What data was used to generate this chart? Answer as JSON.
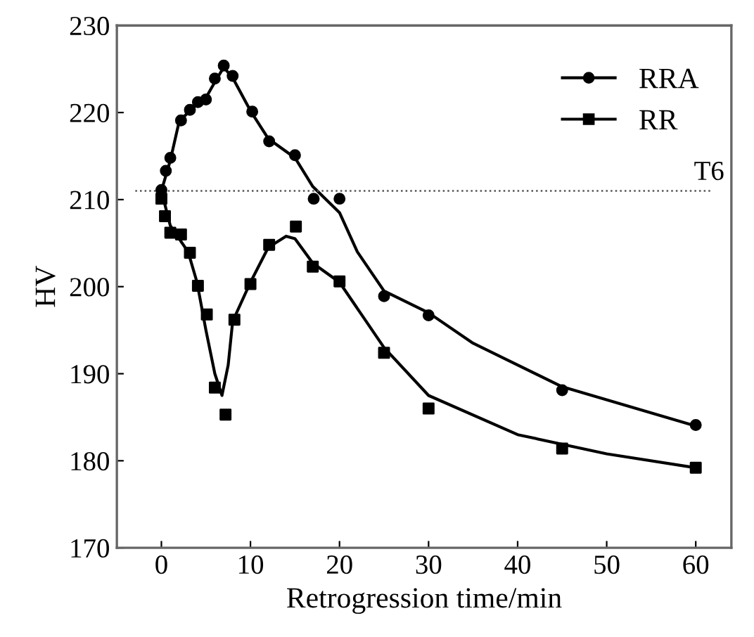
{
  "chart_data": {
    "type": "scatter",
    "xlabel": "Retrogression time/min",
    "ylabel": "HV",
    "xlim": [
      -5,
      64
    ],
    "ylim": [
      170,
      230
    ],
    "xticks": [
      0,
      10,
      20,
      30,
      40,
      50,
      60
    ],
    "yticks": [
      170,
      180,
      190,
      200,
      210,
      220,
      230
    ],
    "grid": false,
    "legend": "top right",
    "line_style": "solid",
    "ref_lines": [
      {
        "axis": "y",
        "value": 211,
        "label": "T6",
        "line_style": "dotted",
        "color": "#555555"
      }
    ],
    "series": [
      {
        "name": "RRA",
        "marker": "circle",
        "color": "#000000",
        "x": [
          0,
          0.5,
          1,
          2.2,
          3.2,
          4.1,
          5,
          6,
          7,
          8,
          10.2,
          12.1,
          15,
          17.1,
          20,
          25,
          30,
          45,
          60
        ],
        "values": [
          211.1,
          213.3,
          214.8,
          219.1,
          220.3,
          221.2,
          221.5,
          223.9,
          225.4,
          224.2,
          220.1,
          216.7,
          215.1,
          210.1,
          210.1,
          198.9,
          196.7,
          188.1,
          184.1
        ]
      },
      {
        "name": "RR",
        "marker": "square",
        "color": "#000000",
        "x": [
          0,
          0.4,
          1,
          2.2,
          3.2,
          4.1,
          5.1,
          6,
          7.2,
          8.2,
          10,
          12.1,
          15.1,
          17,
          20,
          25,
          30,
          45,
          60
        ],
        "values": [
          210.1,
          208.1,
          206.2,
          206.0,
          203.9,
          200.1,
          196.8,
          188.4,
          185.3,
          196.2,
          200.3,
          204.8,
          206.9,
          202.3,
          200.6,
          192.4,
          186.0,
          181.4,
          179.2
        ]
      },
      {
        "type": "line",
        "marker": "none",
        "color": "#000000",
        "x": [
          0,
          1,
          2,
          4,
          5,
          6,
          7,
          8,
          10,
          12,
          15,
          17,
          20,
          22,
          25,
          30,
          35,
          45,
          60
        ],
        "values": [
          211,
          214.5,
          219,
          221,
          221.7,
          223.5,
          225.2,
          224,
          220.2,
          217,
          214.8,
          211.5,
          208.5,
          204,
          199.5,
          197,
          193.5,
          188.5,
          184
        ]
      },
      {
        "type": "line",
        "marker": "none",
        "color": "#000000",
        "x": [
          0,
          1,
          2,
          3,
          4,
          5,
          6,
          6.8,
          7.5,
          8,
          10,
          12,
          14,
          15,
          17,
          20,
          25,
          30,
          40,
          50,
          60
        ],
        "values": [
          211,
          207,
          205.5,
          204,
          200.5,
          195,
          190,
          187.5,
          191,
          196,
          200.5,
          204.5,
          205.8,
          205.5,
          202.7,
          200.5,
          193,
          187.5,
          183,
          180.8,
          179.2
        ]
      }
    ]
  }
}
